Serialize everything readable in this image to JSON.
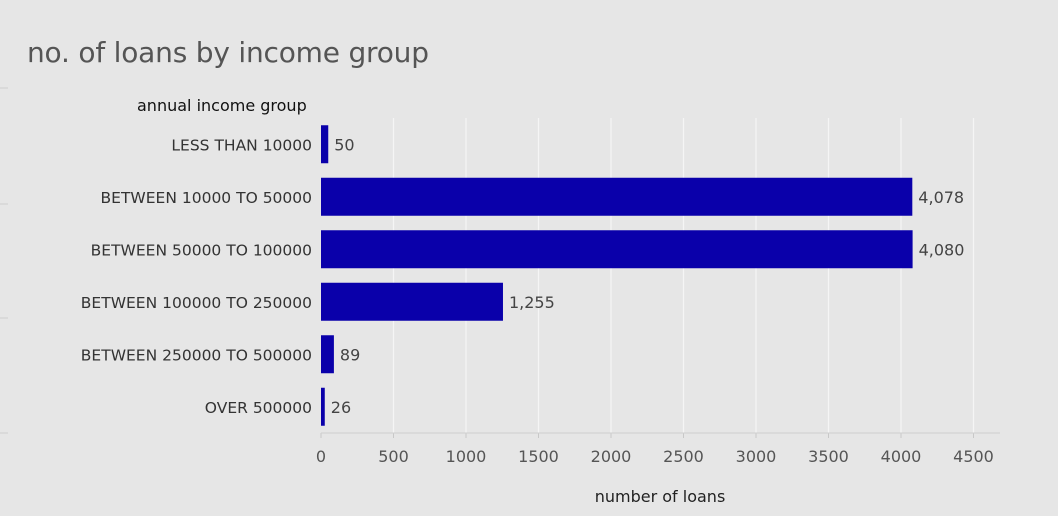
{
  "chart_data": {
    "type": "bar",
    "orientation": "horizontal",
    "title": "no. of loans by income group",
    "row_header": "annual income group",
    "xlabel": "number of loans",
    "categories": [
      "LESS THAN 10000",
      "BETWEEN 10000 TO 50000",
      "BETWEEN 50000 TO 100000",
      "BETWEEN 100000 TO 250000",
      "BETWEEN 250000 TO 500000",
      "OVER 500000"
    ],
    "values": [
      50,
      4078,
      4080,
      1255,
      89,
      26
    ],
    "value_labels": [
      "50",
      "4,078",
      "4,080",
      "1,255",
      "89",
      "26"
    ],
    "xticks": [
      0,
      500,
      1000,
      1500,
      2000,
      2500,
      3000,
      3500,
      4000,
      4500
    ],
    "xlim": [
      0,
      4700
    ],
    "grid": true,
    "bar_color": "#0a00aa",
    "gridline_color": "#f5f5f5"
  }
}
